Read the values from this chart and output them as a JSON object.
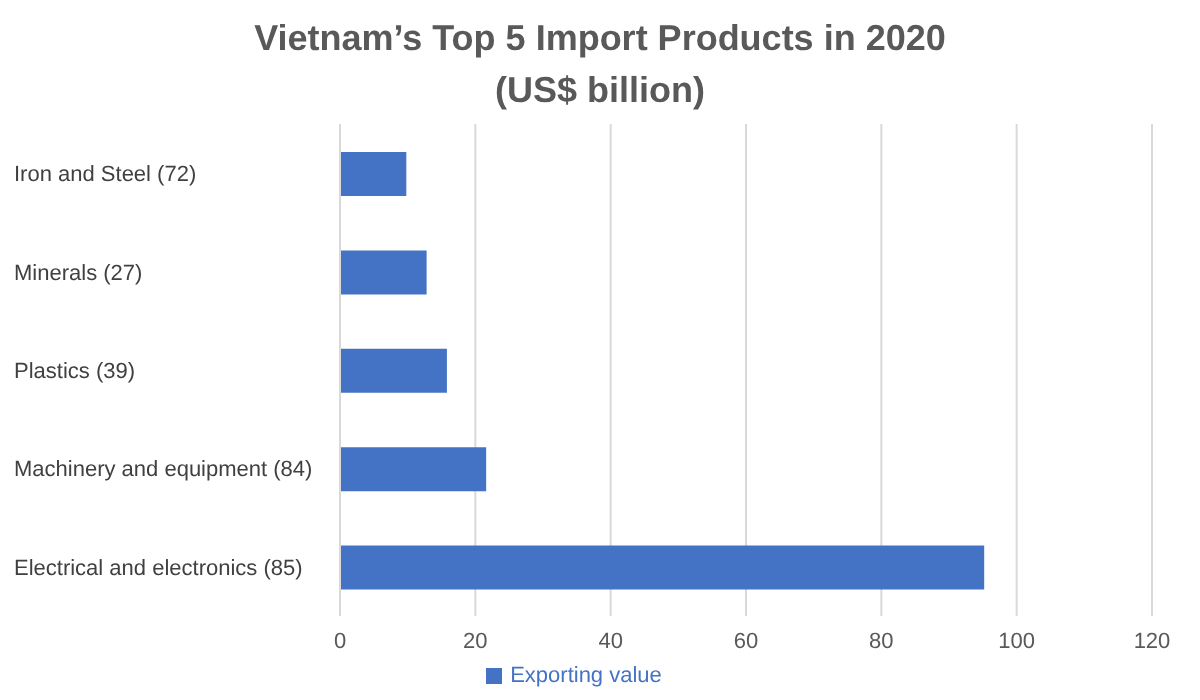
{
  "chart_data": {
    "type": "bar",
    "orientation": "horizontal",
    "title": "Vietnam’s Top 5 Import Products in 2020",
    "subtitle": "(US$ billion)",
    "categories": [
      "Iron and Steel (72)",
      "Minerals (27)",
      "Plastics (39)",
      "Machinery and equipment (84)",
      "Electrical and electronics (85)"
    ],
    "series": [
      {
        "name": "Exporting value",
        "color": "#4472c4",
        "values": [
          9.8,
          12.8,
          15.8,
          21.6,
          95.2
        ]
      }
    ],
    "xlim": [
      0,
      120
    ],
    "xticks": [
      0,
      20,
      40,
      60,
      80,
      100,
      120
    ],
    "grid": "x",
    "legend": "bottom"
  }
}
